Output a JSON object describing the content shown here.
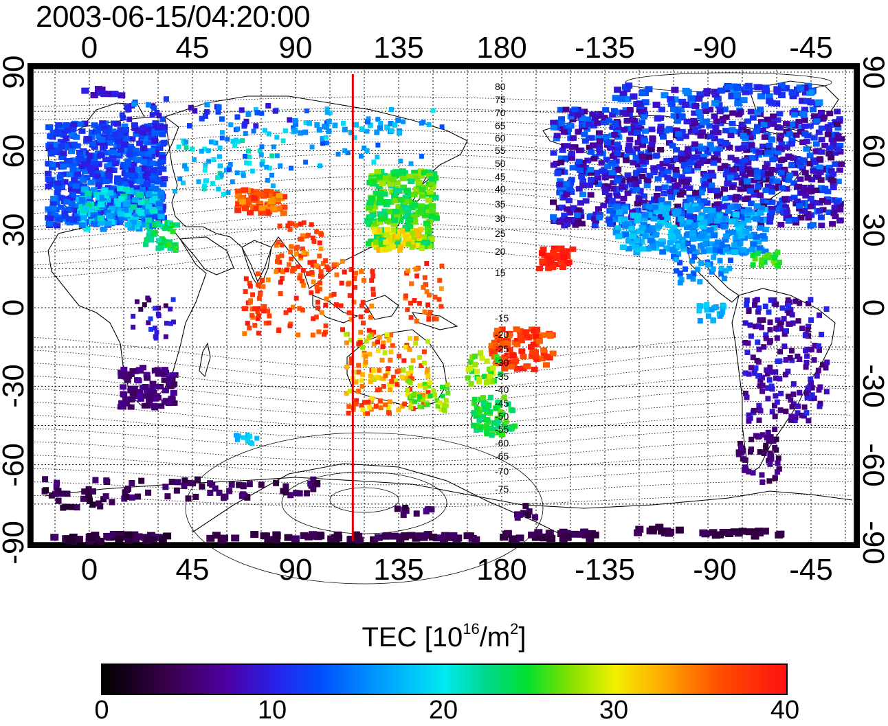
{
  "timestamp": "2003-06-15/04:20:00",
  "top_ticks": [
    "0",
    "45",
    "90",
    "135",
    "180",
    "-135",
    "-90",
    "-45"
  ],
  "bottom_ticks": [
    "0",
    "45",
    "90",
    "135",
    "180",
    "-135",
    "-90",
    "-45"
  ],
  "left_ticks": [
    "90",
    "60",
    "30",
    "0",
    "-30",
    "-60",
    "-90"
  ],
  "right_ticks": [
    "90",
    "60",
    "30",
    "0",
    "-30",
    "-60",
    "-90"
  ],
  "contour_labels_north": [
    "80",
    "75",
    "70",
    "65",
    "60",
    "55",
    "50",
    "45",
    "40",
    "35",
    "30",
    "25",
    "20",
    "15"
  ],
  "contour_labels_south": [
    "-15",
    "-20",
    "-25",
    "-30",
    "-35",
    "-40",
    "-45",
    "-50",
    "-55",
    "-60",
    "-65",
    "-70",
    "-75"
  ],
  "colorbar": {
    "title_prefix": "TEC  [10",
    "title_exp": "16",
    "title_mid": "/m",
    "title_exp2": "2",
    "title_suffix": "]",
    "ticks": [
      "0",
      "10",
      "20",
      "30",
      "40"
    ],
    "range": [
      0,
      40
    ]
  },
  "colors": {
    "meridian_line": "#e00000",
    "frame": "#000000"
  },
  "meridian_longitude": 115
}
